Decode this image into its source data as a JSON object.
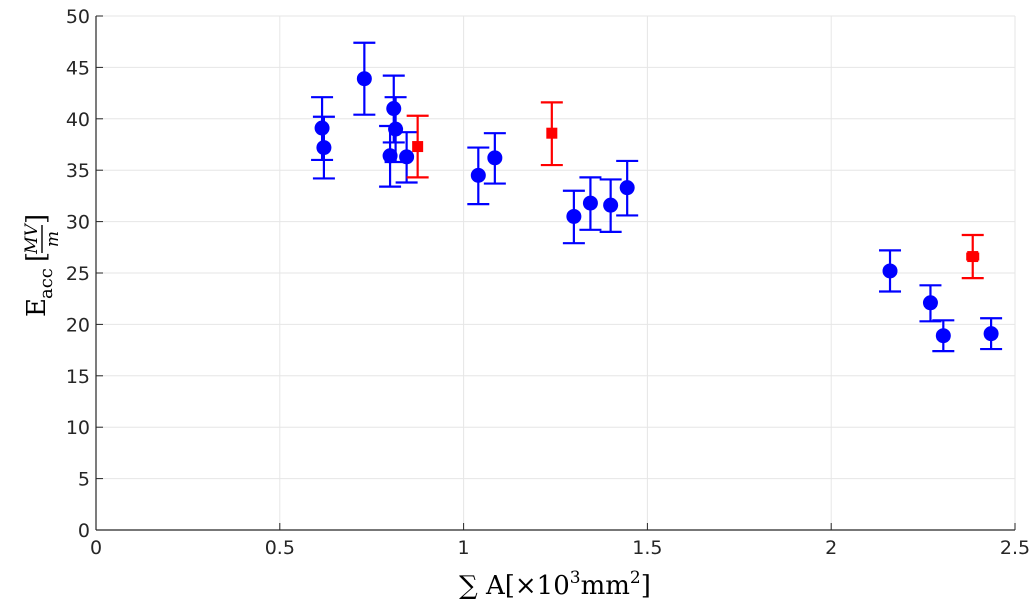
{
  "chart_data": {
    "type": "scatter",
    "title": "",
    "xlabel": {
      "prefix": "∑ A[×10",
      "exp": "3",
      "unit": "mm",
      "unit_exp": "2",
      "suffix": "]"
    },
    "ylabel": {
      "main": "E",
      "sub": "acc",
      "unit_num": "MV",
      "unit_den": "m"
    },
    "xlim": [
      0,
      2.5
    ],
    "ylim": [
      0,
      50
    ],
    "xticks": [
      "0",
      "0.5",
      "1",
      "1.5",
      "2",
      "2.5"
    ],
    "yticks": [
      "0",
      "5",
      "10",
      "15",
      "20",
      "25",
      "30",
      "35",
      "40",
      "45",
      "50"
    ],
    "grid": true,
    "series": [
      {
        "color": "#0000ff",
        "marker": "circle",
        "points": [
          {
            "x": 0.615,
            "y": 39.1,
            "lo": 36.0,
            "hi": 42.1
          },
          {
            "x": 0.62,
            "y": 37.2,
            "lo": 34.2,
            "hi": 40.2
          },
          {
            "x": 0.73,
            "y": 43.9,
            "lo": 40.4,
            "hi": 47.4
          },
          {
            "x": 0.8,
            "y": 36.4,
            "lo": 33.4,
            "hi": 39.3
          },
          {
            "x": 0.81,
            "y": 41.0,
            "lo": 37.7,
            "hi": 44.2
          },
          {
            "x": 0.815,
            "y": 39.0,
            "lo": 35.8,
            "hi": 42.1
          },
          {
            "x": 0.845,
            "y": 36.3,
            "lo": 33.8,
            "hi": 38.7
          },
          {
            "x": 1.04,
            "y": 34.5,
            "lo": 31.7,
            "hi": 37.2
          },
          {
            "x": 1.085,
            "y": 36.2,
            "lo": 33.7,
            "hi": 38.6
          },
          {
            "x": 1.3,
            "y": 30.5,
            "lo": 27.9,
            "hi": 33.0
          },
          {
            "x": 1.345,
            "y": 31.8,
            "lo": 29.2,
            "hi": 34.3
          },
          {
            "x": 1.4,
            "y": 31.6,
            "lo": 29.0,
            "hi": 34.1
          },
          {
            "x": 1.445,
            "y": 33.3,
            "lo": 30.6,
            "hi": 35.9
          },
          {
            "x": 2.16,
            "y": 25.2,
            "lo": 23.2,
            "hi": 27.2,
            "xerr": 0.015
          },
          {
            "x": 2.27,
            "y": 22.1,
            "lo": 20.3,
            "hi": 23.8,
            "xerr": 0.015
          },
          {
            "x": 2.305,
            "y": 18.9,
            "lo": 17.4,
            "hi": 20.4,
            "xerr": 0.015
          },
          {
            "x": 2.435,
            "y": 19.1,
            "lo": 17.6,
            "hi": 20.6,
            "xerr": 0.015
          }
        ]
      },
      {
        "color": "#ff0000",
        "marker": "square",
        "points": [
          {
            "x": 0.875,
            "y": 37.3,
            "lo": 34.3,
            "hi": 40.3
          },
          {
            "x": 1.24,
            "y": 38.6,
            "lo": 35.5,
            "hi": 41.6
          },
          {
            "x": 2.385,
            "y": 26.6,
            "lo": 24.5,
            "hi": 28.7,
            "xerr": 0.015
          }
        ]
      }
    ]
  }
}
